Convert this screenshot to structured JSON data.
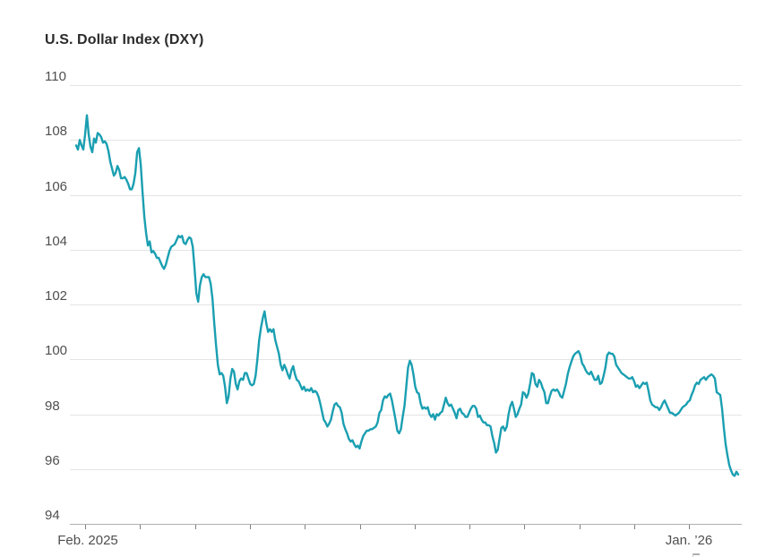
{
  "page": {
    "background": "#ffffff"
  },
  "colors": {
    "line": "#1a9fb1",
    "gridline": "#e4e4e4",
    "axis_line": "#b0b0b0",
    "tick_mark": "#808080",
    "axis_label": "#4f4f4f",
    "title": "#2b2b2b"
  },
  "chart_data": {
    "type": "line",
    "title": "U.S. Dollar Index (DXY)",
    "grid": "horizontal",
    "legend": "none",
    "x_axis": {
      "first_label": "Feb. 2025",
      "last_label": "Jan. ’26",
      "tick_count": 12,
      "ticks_are_months": true
    },
    "y_axis": {
      "ticks": [
        110,
        108,
        106,
        104,
        102,
        100,
        98,
        96,
        94
      ],
      "ylim": [
        94,
        110
      ]
    },
    "series": [
      {
        "name": "DXY",
        "color": "#1a9fb1",
        "note": "values evenly spaced in time from Feb 2025 to early Feb 2026",
        "values": [
          107.8,
          107.65,
          108.0,
          107.8,
          107.65,
          108.2,
          108.9,
          108.2,
          107.75,
          107.55,
          108.05,
          107.9,
          108.25,
          108.2,
          108.1,
          107.9,
          107.95,
          107.85,
          107.6,
          107.2,
          106.95,
          106.7,
          106.8,
          107.05,
          106.9,
          106.6,
          106.6,
          106.65,
          106.55,
          106.4,
          106.2,
          106.2,
          106.4,
          106.8,
          107.55,
          107.7,
          107.1,
          106.1,
          105.2,
          104.6,
          104.15,
          104.3,
          103.9,
          103.95,
          103.85,
          103.7,
          103.7,
          103.55,
          103.4,
          103.3,
          103.45,
          103.7,
          103.95,
          104.1,
          104.15,
          104.2,
          104.35,
          104.5,
          104.45,
          104.5,
          104.25,
          104.2,
          104.35,
          104.45,
          104.4,
          104.1,
          103.3,
          102.4,
          102.1,
          102.7,
          103.0,
          103.1,
          103.0,
          103.0,
          103.0,
          102.75,
          102.2,
          101.3,
          100.5,
          99.8,
          99.45,
          99.5,
          99.4,
          99.0,
          98.4,
          98.65,
          99.3,
          99.65,
          99.55,
          99.1,
          98.9,
          99.2,
          99.3,
          99.25,
          99.5,
          99.5,
          99.3,
          99.1,
          99.05,
          99.1,
          99.4,
          100.0,
          100.7,
          101.15,
          101.5,
          101.75,
          101.3,
          101.0,
          101.1,
          101.0,
          101.1,
          100.7,
          100.45,
          100.2,
          99.8,
          99.6,
          99.8,
          99.65,
          99.45,
          99.3,
          99.6,
          99.75,
          99.45,
          99.25,
          99.2,
          99.05,
          98.9,
          99.0,
          98.85,
          98.9,
          98.85,
          98.95,
          98.8,
          98.85,
          98.8,
          98.65,
          98.4,
          98.1,
          97.8,
          97.7,
          97.55,
          97.65,
          97.8,
          98.1,
          98.35,
          98.4,
          98.3,
          98.25,
          98.05,
          97.65,
          97.45,
          97.3,
          97.1,
          97.0,
          97.05,
          96.9,
          96.8,
          96.85,
          96.75,
          97.0,
          97.2,
          97.3,
          97.4,
          97.4,
          97.45,
          97.45,
          97.5,
          97.55,
          97.7,
          98.05,
          98.15,
          98.5,
          98.65,
          98.6,
          98.7,
          98.75,
          98.5,
          98.15,
          97.8,
          97.4,
          97.3,
          97.45,
          97.9,
          98.3,
          99.0,
          99.7,
          99.95,
          99.8,
          99.45,
          99.0,
          98.8,
          98.75,
          98.4,
          98.2,
          98.25,
          98.2,
          98.25,
          98.0,
          97.9,
          98.0,
          97.8,
          98.0,
          97.95,
          98.05,
          98.1,
          98.35,
          98.6,
          98.4,
          98.3,
          98.35,
          98.2,
          98.05,
          97.85,
          98.15,
          98.2,
          98.05,
          98.0,
          97.9,
          97.9,
          98.05,
          98.2,
          98.3,
          98.3,
          98.2,
          97.9,
          97.95,
          97.8,
          97.7,
          97.7,
          97.6,
          97.6,
          97.55,
          97.2,
          96.95,
          96.6,
          96.7,
          97.1,
          97.5,
          97.55,
          97.4,
          97.55,
          98.0,
          98.3,
          98.45,
          98.2,
          97.9,
          98.0,
          98.2,
          98.35,
          98.8,
          98.75,
          98.6,
          98.75,
          99.1,
          99.5,
          99.45,
          99.1,
          99.0,
          99.25,
          99.15,
          98.95,
          98.8,
          98.4,
          98.4,
          98.65,
          98.85,
          98.9,
          98.85,
          98.9,
          98.8,
          98.65,
          98.6,
          98.85,
          99.1,
          99.45,
          99.7,
          99.9,
          100.1,
          100.2,
          100.25,
          100.3,
          100.15,
          99.85,
          99.75,
          99.6,
          99.5,
          99.45,
          99.55,
          99.4,
          99.25,
          99.25,
          99.4,
          99.1,
          99.15,
          99.4,
          99.7,
          100.15,
          100.25,
          100.2,
          100.2,
          100.1,
          99.8,
          99.7,
          99.6,
          99.5,
          99.45,
          99.4,
          99.35,
          99.3,
          99.3,
          99.35,
          99.2,
          99.0,
          99.05,
          98.95,
          99.05,
          99.15,
          99.1,
          99.15,
          98.85,
          98.5,
          98.35,
          98.3,
          98.25,
          98.25,
          98.15,
          98.25,
          98.4,
          98.5,
          98.35,
          98.2,
          98.05,
          98.05,
          98.0,
          97.95,
          98.0,
          98.05,
          98.15,
          98.25,
          98.3,
          98.35,
          98.45,
          98.5,
          98.7,
          98.85,
          99.05,
          99.15,
          99.1,
          99.25,
          99.3,
          99.35,
          99.25,
          99.35,
          99.4,
          99.45,
          99.4,
          99.3,
          98.8,
          98.75,
          98.7,
          98.2,
          97.5,
          96.9,
          96.5,
          96.15,
          95.95,
          95.8,
          95.75,
          95.9,
          95.8
        ]
      }
    ]
  }
}
